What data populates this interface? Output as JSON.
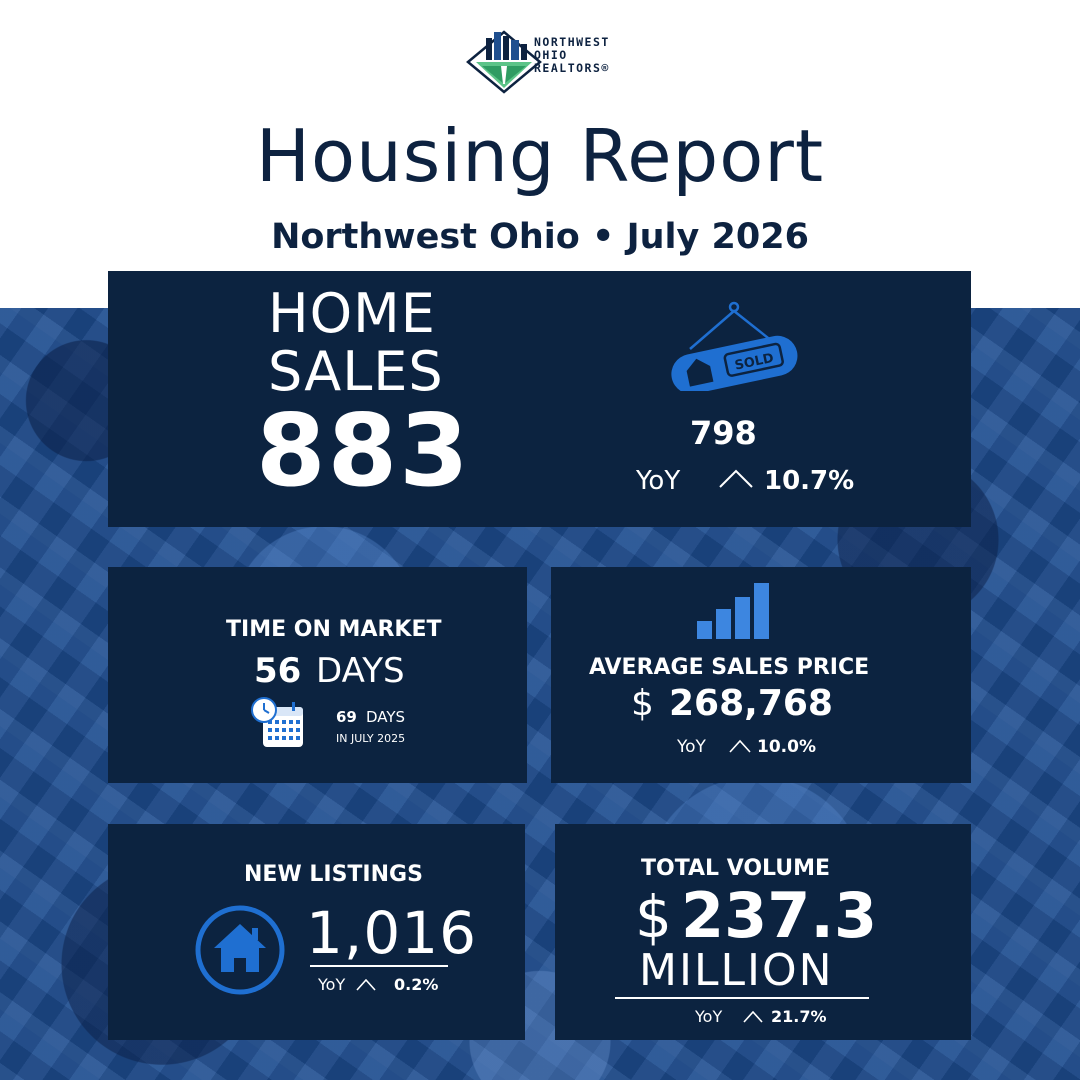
{
  "brand": {
    "logo_line1": "NORTHWEST",
    "logo_line2": "OHIO",
    "logo_line3": "REALTORS®"
  },
  "header": {
    "title": "Housing Report",
    "subtitle": "Northwest Ohio • July 2026"
  },
  "home_sales": {
    "label_line1": "HOME",
    "label_line2": "SALES",
    "value": "883",
    "previous_value": "798",
    "yoy_label": "YoY",
    "yoy_change": "10.7%",
    "icon": "sold-sign-icon",
    "sign_text": "SOLD"
  },
  "time_on_market": {
    "label": "TIME ON MARKET",
    "value": "56",
    "unit": "DAYS",
    "previous_value": "69",
    "previous_unit": "DAYS",
    "previous_note": "IN JULY 2025",
    "icon": "calendar-clock-icon"
  },
  "average_sales_price": {
    "label": "AVERAGE SALES PRICE",
    "currency": "$",
    "value": "268,768",
    "yoy_label": "YoY",
    "yoy_change": "10.0%",
    "icon": "bar-chart-icon"
  },
  "new_listings": {
    "label": "NEW LISTINGS",
    "value": "1,016",
    "yoy_label": "YoY",
    "yoy_change": "0.2%",
    "icon": "house-circle-icon"
  },
  "total_volume": {
    "label": "TOTAL VOLUME",
    "currency": "$",
    "value": "237.3",
    "unit": "MILLION",
    "yoy_label": "YoY",
    "yoy_change": "21.7%"
  },
  "colors": {
    "navy": "#0c2340",
    "accent_blue": "#1f6fd1",
    "background_blue": "#1d4c8f",
    "white": "#ffffff"
  }
}
